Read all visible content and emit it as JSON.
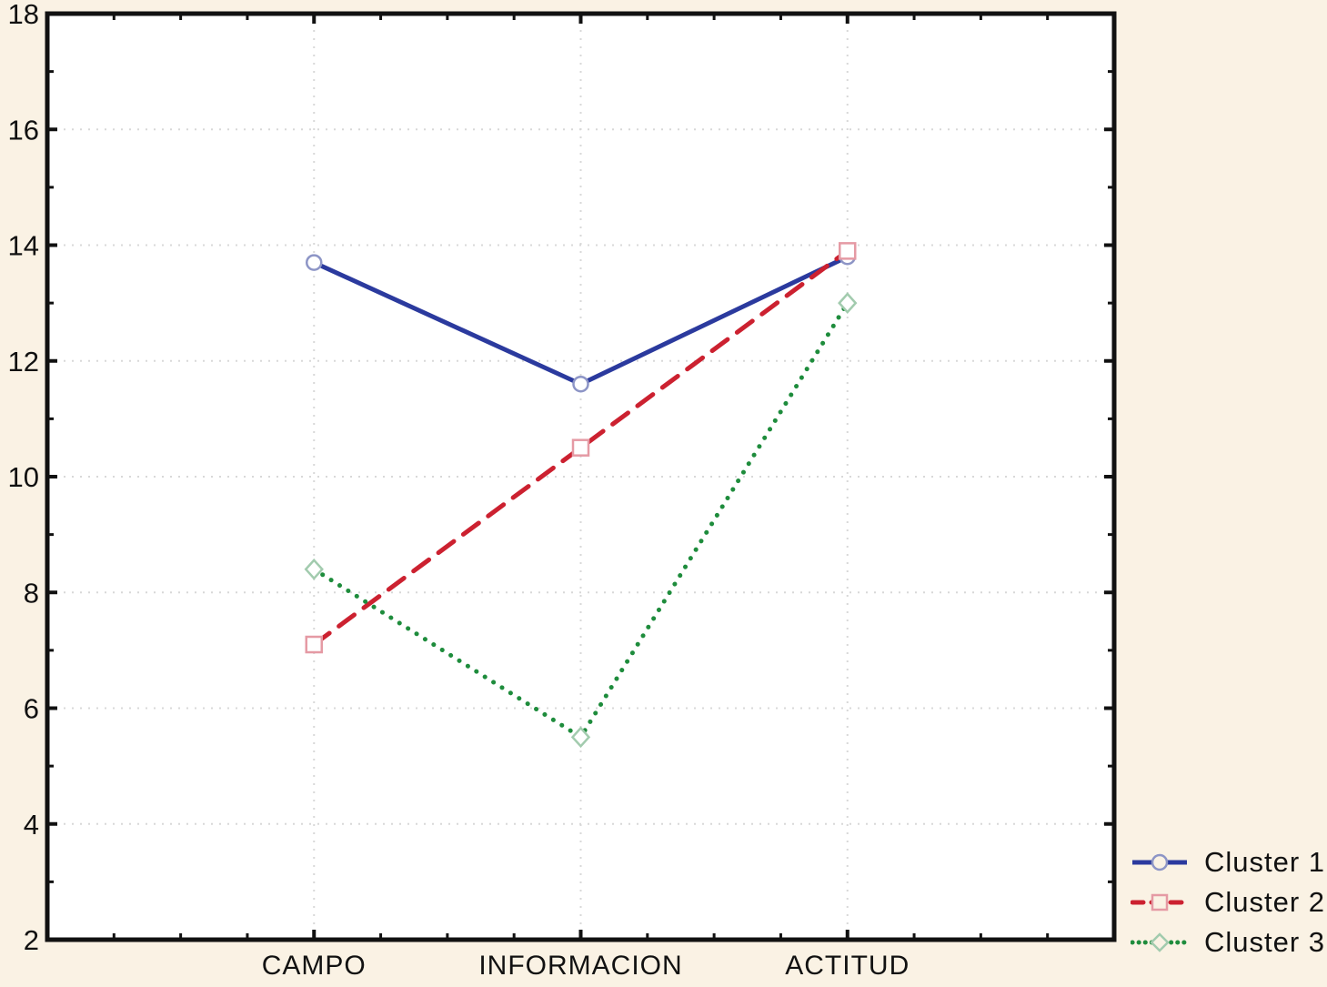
{
  "chart_data": {
    "type": "line",
    "categories": [
      "CAMPO",
      "INFORMACION",
      "ACTITUD"
    ],
    "series": [
      {
        "name": "Cluster 1",
        "values": [
          13.7,
          11.6,
          13.8
        ],
        "color": "#2b3a9e",
        "marker": "circle",
        "marker_stroke": "#8d95c6",
        "line_style": "solid"
      },
      {
        "name": "Cluster 2",
        "values": [
          7.1,
          10.5,
          13.9
        ],
        "color": "#cc2130",
        "marker": "square",
        "marker_stroke": "#e59aa4",
        "line_style": "dashed"
      },
      {
        "name": "Cluster 3",
        "values": [
          8.4,
          5.5,
          13.0
        ],
        "color": "#1e8c3c",
        "marker": "diamond",
        "marker_stroke": "#a2cbae",
        "line_style": "dotted"
      }
    ],
    "title": "",
    "xlabel": "",
    "ylabel": "",
    "ylim": [
      2,
      18
    ],
    "ytick_step": 2,
    "y_tick_labels": [
      "2",
      "4",
      "6",
      "8",
      "10",
      "12",
      "14",
      "16",
      "18"
    ],
    "grid": true,
    "legend_position": "bottom-right"
  },
  "colors": {
    "background": "#faf2e4",
    "plot_background": "#ffffff",
    "axis": "#111111",
    "gridline": "#d8d8d8",
    "text": "#111111"
  }
}
